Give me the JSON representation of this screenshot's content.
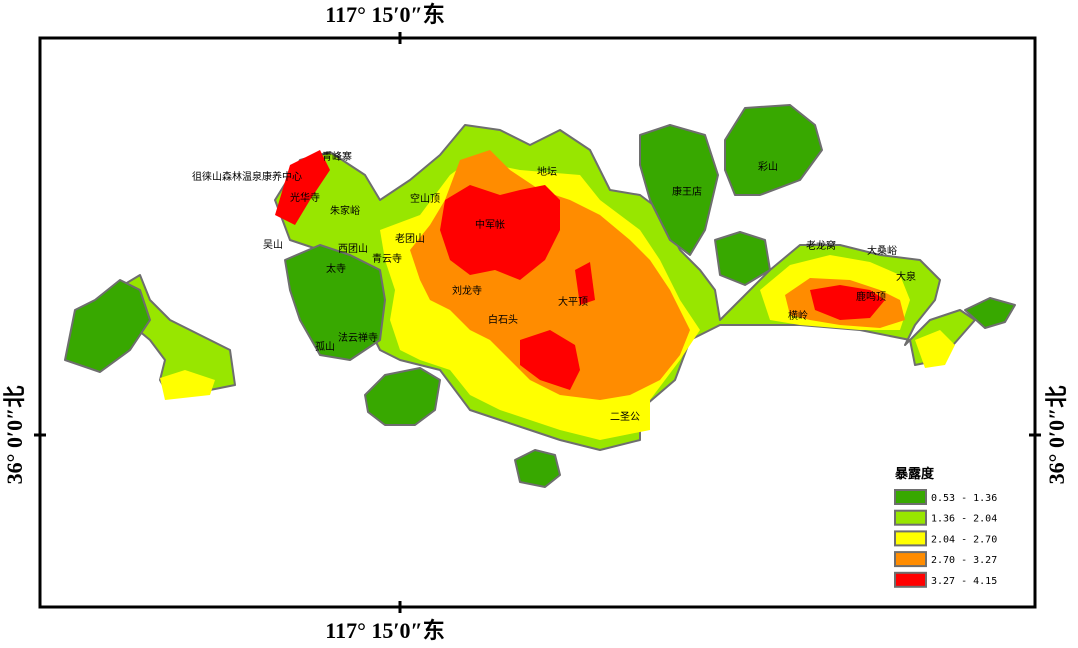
{
  "coordinates": {
    "top": "117° 15′0″东",
    "bottom": "117° 15′0″东",
    "left": "36° 0′0″北",
    "right": "36° 0′0″北"
  },
  "places": [
    "徂徕山森林温泉康养中心",
    "青峰寨",
    "光华寺",
    "朱家峪",
    "空山顶",
    "地坛",
    "中军帐",
    "康王店",
    "彩山",
    "老团山",
    "西团山",
    "吴山",
    "太寺",
    "青云寺",
    "刘龙寺",
    "大平顶",
    "白石头",
    "法云禅寺",
    "孤山",
    "二圣公",
    "老龙窝",
    "大桑峪",
    "大泉",
    "横岭",
    "鹿鸣顶"
  ],
  "legend": {
    "title": "暴露度",
    "items": [
      {
        "label": "0.53 - 1.36",
        "color": "#38a800"
      },
      {
        "label": "1.36 - 2.04",
        "color": "#98e600"
      },
      {
        "label": "2.04 - 2.70",
        "color": "#ffff00"
      },
      {
        "label": "2.70 - 3.27",
        "color": "#ff8c00"
      },
      {
        "label": "3.27 - 4.15",
        "color": "#ff0000"
      }
    ]
  }
}
